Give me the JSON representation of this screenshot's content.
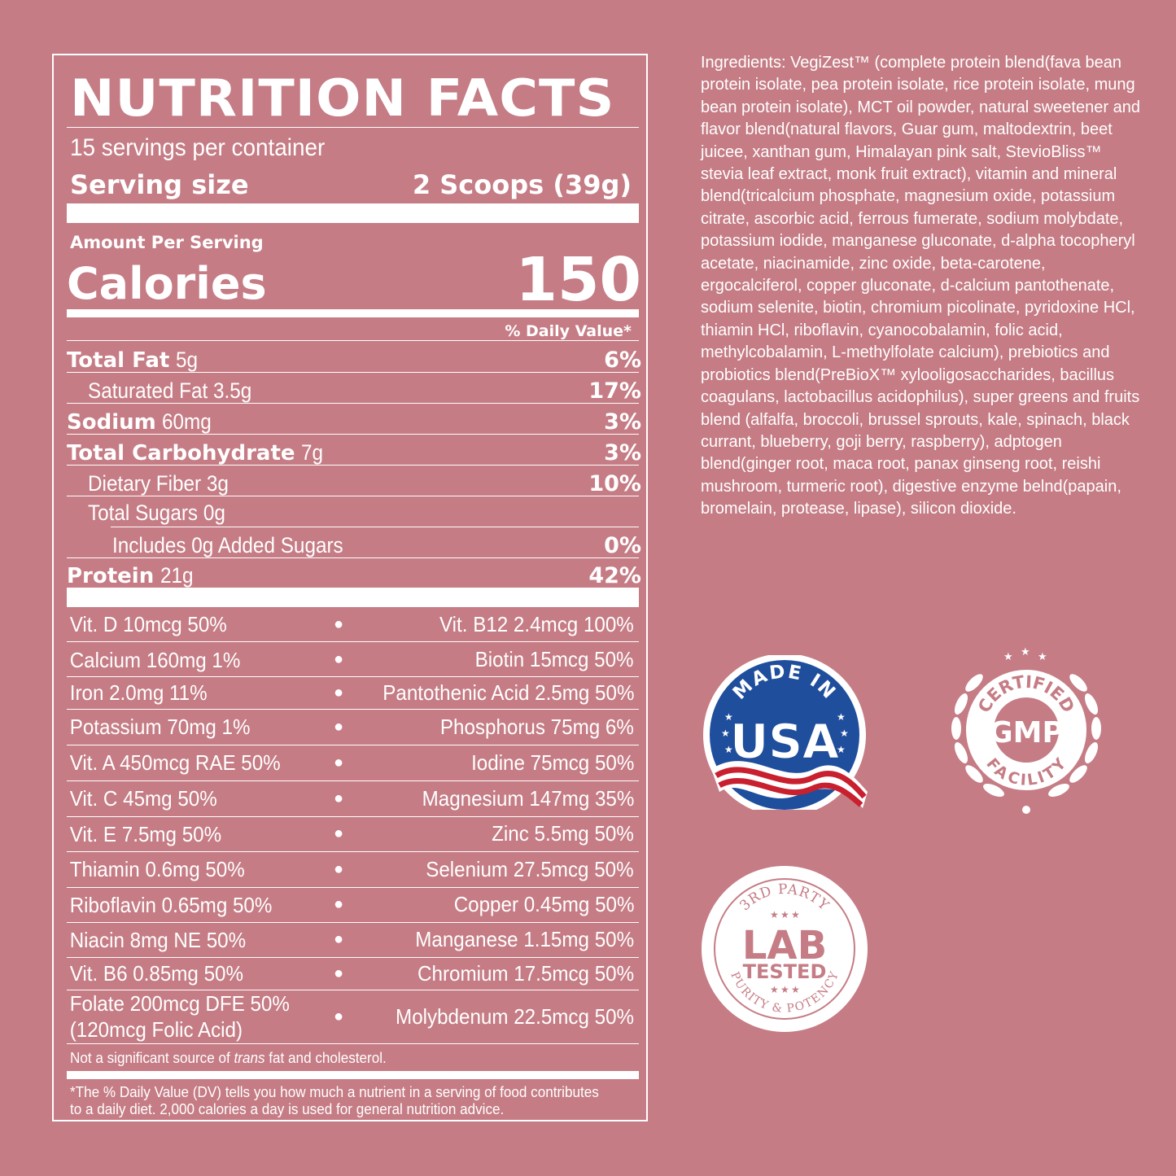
{
  "label": {
    "title": "NUTRITION FACTS",
    "servings": "15 servings per container",
    "serving_size_label": "Serving size",
    "serving_size_value": "2 Scoops (39g)",
    "amount_per_serving": "Amount Per Serving",
    "calories_label": "Calories",
    "calories_value": "150",
    "dv_header": "% Daily Value*",
    "nutrients": [
      {
        "name": "Total Fat",
        "amount": "5g",
        "dv": "6%"
      },
      {
        "name": "Saturated Fat",
        "amount": "3.5g",
        "dv": "17%"
      },
      {
        "name": "Sodium",
        "amount": "60mg",
        "dv": "3%"
      },
      {
        "name": "Total Carbohydrate",
        "amount": "7g",
        "dv": "3%"
      },
      {
        "name": "Dietary Fiber",
        "amount": "3g",
        "dv": "10%"
      },
      {
        "name": "Total Sugars",
        "amount": "0g",
        "dv": ""
      },
      {
        "name": "Includes 0g Added Sugars",
        "amount": "",
        "dv": "0%"
      },
      {
        "name": "Protein",
        "amount": "21g",
        "dv": "42%"
      }
    ],
    "vitamins": [
      {
        "left": "Vit. D 10mcg 50%",
        "right": "Vit. B12 2.4mcg 100%"
      },
      {
        "left": "Calcium 160mg 1%",
        "right": "Biotin 15mcg 50%"
      },
      {
        "left": "Iron 2.0mg 11%",
        "right": "Pantothenic Acid 2.5mg 50%"
      },
      {
        "left": "Potassium 70mg 1%",
        "right": "Phosphorus 75mg 6%"
      },
      {
        "left": "Vit. A 450mcg RAE 50%",
        "right": "Iodine 75mcg 50%"
      },
      {
        "left": "Vit. C 45mg 50%",
        "right": "Magnesium 147mg 35%"
      },
      {
        "left": "Vit. E 7.5mg 50%",
        "right": "Zinc 5.5mg 50%"
      },
      {
        "left": "Thiamin 0.6mg 50%",
        "right": "Selenium 27.5mcg 50%"
      },
      {
        "left": "Riboflavin 0.65mg 50%",
        "right": "Copper 0.45mg 50%"
      },
      {
        "left": "Niacin 8mg NE 50%",
        "right": "Manganese 1.15mg 50%"
      },
      {
        "left": "Vit. B6 0.85mg 50%",
        "right": "Chromium 17.5mcg 50%"
      },
      {
        "left": "Folate 200mcg DFE 50%",
        "left2": "(120mcg Folic Acid)",
        "right": "Molybdenum 22.5mcg 50%"
      }
    ],
    "bullet": "●",
    "not_significant_pre": "Not a significant source of ",
    "not_significant_em": "trans",
    "not_significant_post": " fat and cholesterol.",
    "footnote": "*The % Daily Value (DV) tells you how much a nutrient in a serving of food contributes to a daily diet. 2,000 calories a day is used for general nutrition advice."
  },
  "ingredients": "Ingredients: VegiZest™ (complete protein blend(fava bean protein isolate, pea protein isolate, rice protein isolate, mung bean protein isolate), MCT oil powder, natural sweetener and flavor blend(natural flavors, Guar gum, maltodextrin, beet juicee, xanthan gum, Himalayan pink salt, StevioBliss™ stevia leaf extract, monk fruit extract), vitamin and mineral blend(tricalcium phosphate, magnesium oxide, potassium citrate, ascorbic acid, ferrous fumerate, sodium molybdate, potassium iodide, manganese gluconate, d-alpha tocopheryl acetate, niacinamide, zinc oxide, beta-carotene, ergocalciferol, copper gluconate, d-calcium pantothenate, sodium selenite, biotin, chromium picolinate, pyridoxine HCl, thiamin HCl, riboflavin, cyanocobalamin, folic acid, methylcobalamin, L-methylfolate calcium), prebiotics and probiotics blend(PreBioX™ xylooligosaccharides, bacillus coagulans, lactobacillus acidophilus), super greens and fruits blend (alfalfa, broccoli, brussel sprouts, kale, spinach, black currant, blueberry, goji berry, raspberry), adptogen blend(ginger root, maca root, panax ginseng root, reishi mushroom, turmeric root), digestive enzyme belnd(papain, bromelain, protease, lipase), silicon dioxide.",
  "badges": {
    "usa": {
      "top": "MADE IN",
      "main": "USA"
    },
    "gmp": {
      "top": "CERTIFIED",
      "main": "GMP",
      "bottom": "FACILITY"
    },
    "lab": {
      "top": "3RD PARTY",
      "main1": "LAB",
      "main2": "TESTED",
      "bottom": "PURITY & POTENCY"
    }
  },
  "colors": {
    "background": "#c57c85",
    "usa_blue": "#1f4e9c",
    "usa_red": "#c8202f",
    "text": "#ffffff"
  }
}
